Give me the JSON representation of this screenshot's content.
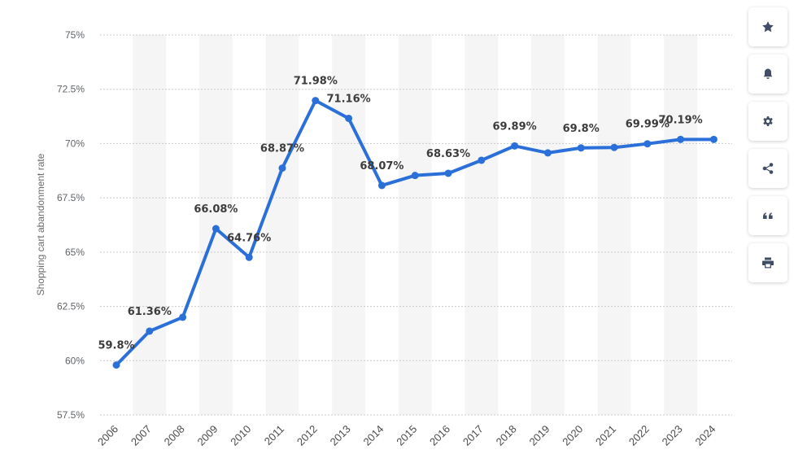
{
  "chart_data": {
    "type": "line",
    "title": "",
    "xlabel": "",
    "ylabel": "Shopping cart abandonment rate",
    "categories": [
      "2006",
      "2007",
      "2008",
      "2009",
      "2010",
      "2011",
      "2012",
      "2013",
      "2014",
      "2015",
      "2016",
      "2017",
      "2018",
      "2019",
      "2020",
      "2021",
      "2022",
      "2023",
      "2024"
    ],
    "series": [
      {
        "values": [
          59.8,
          61.36,
          62.0,
          66.08,
          64.76,
          68.87,
          71.98,
          71.16,
          68.07,
          68.53,
          68.63,
          69.23,
          69.89,
          69.57,
          69.8,
          69.82,
          69.99,
          70.19,
          70.19
        ]
      }
    ],
    "data_labels": [
      {
        "index": 0,
        "text": "59.8%"
      },
      {
        "index": 1,
        "text": "61.36%"
      },
      {
        "index": 3,
        "text": "66.08%"
      },
      {
        "index": 4,
        "text": "64.76%"
      },
      {
        "index": 5,
        "text": "68.87%"
      },
      {
        "index": 6,
        "text": "71.98%"
      },
      {
        "index": 7,
        "text": "71.16%"
      },
      {
        "index": 8,
        "text": "68.07%"
      },
      {
        "index": 10,
        "text": "68.63%"
      },
      {
        "index": 12,
        "text": "69.89%"
      },
      {
        "index": 14,
        "text": "69.8%"
      },
      {
        "index": 16,
        "text": "69.99%"
      },
      {
        "index": 17,
        "text": "70.19%"
      }
    ],
    "ylim": [
      57.5,
      75
    ],
    "yticks": [
      {
        "value": 75,
        "label": "75%"
      },
      {
        "value": 72.5,
        "label": "72.5%"
      },
      {
        "value": 70,
        "label": "70%"
      },
      {
        "value": 67.5,
        "label": "67.5%"
      },
      {
        "value": 65,
        "label": "65%"
      },
      {
        "value": 62.5,
        "label": "62.5%"
      },
      {
        "value": 60,
        "label": "60%"
      },
      {
        "value": 57.5,
        "label": "57.5%"
      }
    ],
    "grid": true,
    "colors": {
      "line": "#2b70d9",
      "grid": "#c9c9c9",
      "band": "#f5f5f5"
    }
  },
  "toolbar": [
    {
      "icon": "star-icon",
      "name": "favorite-button"
    },
    {
      "icon": "bell-icon",
      "name": "notification-button"
    },
    {
      "icon": "gear-icon",
      "name": "settings-button"
    },
    {
      "icon": "share-icon",
      "name": "share-button"
    },
    {
      "icon": "quote-icon",
      "name": "cite-button"
    },
    {
      "icon": "print-icon",
      "name": "print-button"
    }
  ]
}
